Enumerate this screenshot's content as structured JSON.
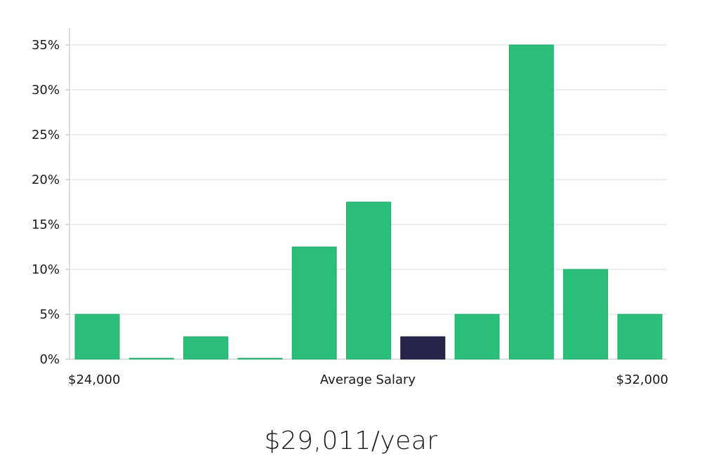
{
  "chart_data": {
    "type": "bar",
    "title": "",
    "xlabel": "Average Salary",
    "ylabel": "",
    "x_range_labels": {
      "min": "$24,000",
      "max": "$32,000"
    },
    "ylim": [
      0,
      36.8
    ],
    "yticks": [
      0,
      5,
      10,
      15,
      20,
      25,
      30,
      35
    ],
    "ytick_labels": [
      "0%",
      "5%",
      "10%",
      "15%",
      "20%",
      "25%",
      "30%",
      "35%"
    ],
    "values": [
      5,
      0.1,
      2.5,
      0.1,
      12.5,
      17.5,
      2.5,
      5,
      35,
      10,
      5
    ],
    "highlight_index": 6,
    "grid": true
  },
  "summary": {
    "salary": "$29,011/year"
  },
  "colors": {
    "bar": "#2abf78",
    "bar_edge": "#20b06c",
    "highlight": "#27244a",
    "grid": "#dddddd",
    "axis": "#bdbdbd"
  }
}
